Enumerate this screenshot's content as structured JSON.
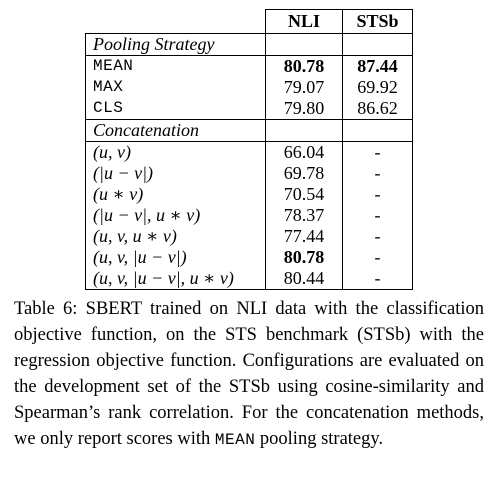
{
  "table": {
    "headers": [
      "NLI",
      "STSb"
    ],
    "sections": [
      {
        "name": "Pooling Strategy",
        "rows": [
          {
            "label": "MEAN",
            "nli": "80.78",
            "stsb": "87.44",
            "nli_bold": true,
            "stsb_bold": true
          },
          {
            "label": "MAX",
            "nli": "79.07",
            "stsb": "69.92"
          },
          {
            "label": "CLS",
            "nli": "79.80",
            "stsb": "86.62"
          }
        ]
      },
      {
        "name": "Concatenation",
        "rows": [
          {
            "label": "(u, v)",
            "nli": "66.04",
            "stsb": "-"
          },
          {
            "label": "(|u − v|)",
            "nli": "69.78",
            "stsb": "-"
          },
          {
            "label": "(u ∗ v)",
            "nli": "70.54",
            "stsb": "-"
          },
          {
            "label": "(|u − v|, u ∗ v)",
            "nli": "78.37",
            "stsb": "-"
          },
          {
            "label": "(u, v, u ∗ v)",
            "nli": "77.44",
            "stsb": "-"
          },
          {
            "label": "(u, v, |u − v|)",
            "nli": "80.78",
            "stsb": "-",
            "nli_bold": true
          },
          {
            "label": "(u, v, |u − v|, u ∗ v)",
            "nli": "80.44",
            "stsb": "-"
          }
        ]
      }
    ]
  },
  "caption": {
    "text_before": "Table 6: SBERT trained on NLI data with the classification objective function, on the STS benchmark (STSb) with the regression objective function. Configurations are evaluated on the development set of the STSb using cosine-similarity and Spearman’s rank correlation. For the concatenation methods, we only report scores with ",
    "mono_word": "MEAN",
    "text_after": " pooling strategy."
  }
}
